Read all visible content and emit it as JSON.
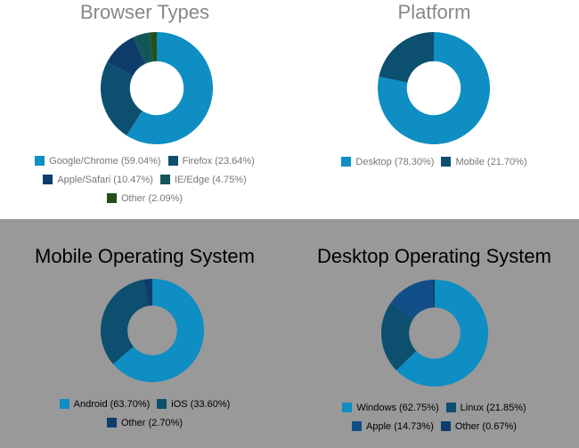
{
  "chart_data": [
    {
      "type": "pie",
      "id": "browser",
      "title": "Browser Types",
      "slices": [
        {
          "label": "Google/Chrome",
          "value": 59.04,
          "legend": "Google/Chrome (59.04%)",
          "color": "#0e8ec2"
        },
        {
          "label": "Firefox",
          "value": 23.64,
          "legend": "Firefox (23.64%)",
          "color": "#0c4f6e"
        },
        {
          "label": "Apple/Safari",
          "value": 10.47,
          "legend": "Apple/Safari (10.47%)",
          "color": "#0e3d6b"
        },
        {
          "label": "IE/Edge",
          "value": 4.75,
          "legend": "IE/Edge (4.75%)",
          "color": "#135656"
        },
        {
          "label": "Other",
          "value": 2.09,
          "legend": "Other (2.09%)",
          "color": "#254f16"
        }
      ]
    },
    {
      "type": "pie",
      "id": "platform",
      "title": "Platform",
      "slices": [
        {
          "label": "Desktop",
          "value": 78.3,
          "legend": "Desktop (78.30%)",
          "color": "#0e8ec2"
        },
        {
          "label": "Mobile",
          "value": 21.7,
          "legend": "Mobile (21.70%)",
          "color": "#0c4f6e"
        }
      ]
    },
    {
      "type": "pie",
      "id": "mobile",
      "title": "Mobile Operating System",
      "slices": [
        {
          "label": "Android",
          "value": 63.7,
          "legend": "Android (63.70%)",
          "color": "#0e8ec2"
        },
        {
          "label": "iOS",
          "value": 33.6,
          "legend": "iOS (33.60%)",
          "color": "#0c4f6e"
        },
        {
          "label": "Other",
          "value": 2.7,
          "legend": "Other (2.70%)",
          "color": "#0e3d6b"
        }
      ]
    },
    {
      "type": "pie",
      "id": "desktop",
      "title": "Desktop Operating System",
      "slices": [
        {
          "label": "Windows",
          "value": 62.75,
          "legend": "Windows (62.75%)",
          "color": "#0e8ec2"
        },
        {
          "label": "Linux",
          "value": 21.85,
          "legend": "Linux (21.85%)",
          "color": "#0c4f6e"
        },
        {
          "label": "Apple",
          "value": 14.73,
          "legend": "Apple (14.73%)",
          "color": "#124e88"
        },
        {
          "label": "Other",
          "value": 0.67,
          "legend": "Other (0.67%)",
          "color": "#0e3d6b"
        }
      ]
    }
  ]
}
